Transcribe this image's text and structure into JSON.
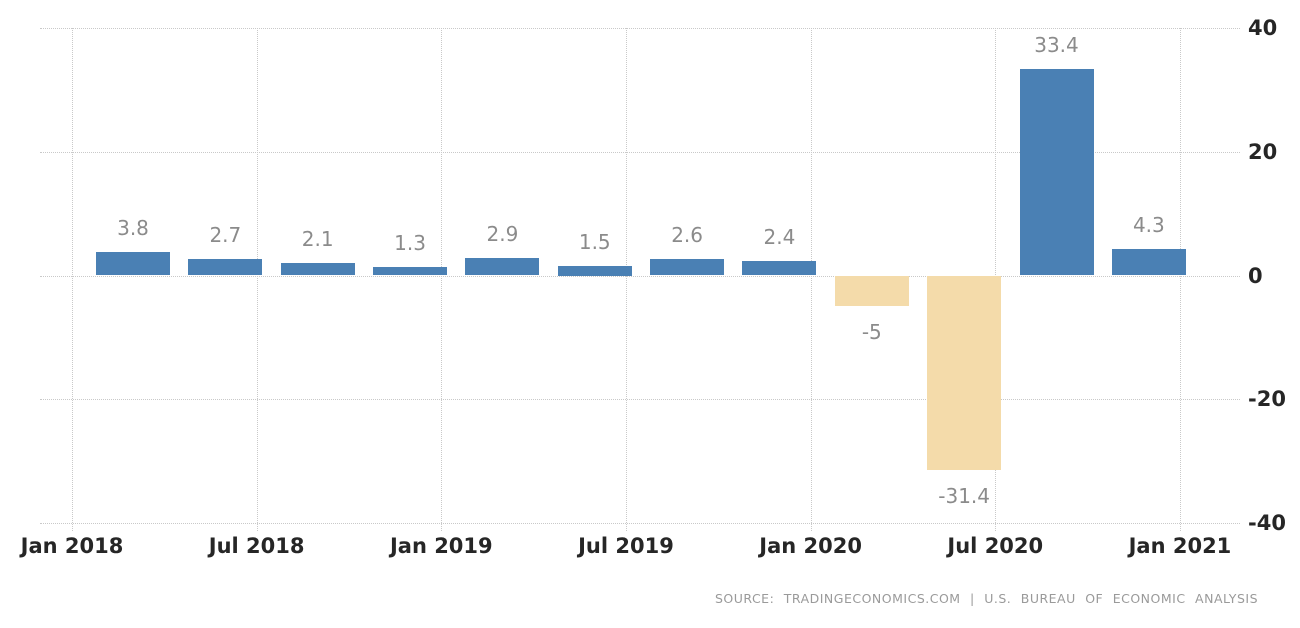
{
  "chart_data": {
    "type": "bar",
    "title": "",
    "xlabel": "",
    "ylabel": "",
    "x_tick_labels": [
      "Jan 2018",
      "Jul 2018",
      "Jan 2019",
      "Jul 2019",
      "Jan 2020",
      "Jul 2020",
      "Jan 2021"
    ],
    "y_tick_labels": [
      "40",
      "20",
      "0",
      "-20",
      "-40"
    ],
    "y_ticks": [
      40,
      20,
      0,
      -20,
      -40
    ],
    "ylim": [
      -40,
      40
    ],
    "values": [
      3.8,
      2.7,
      2.1,
      1.3,
      2.9,
      1.5,
      2.6,
      2.4,
      -5,
      -31.4,
      33.4,
      4.3
    ],
    "value_labels": [
      "3.8",
      "2.7",
      "2.1",
      "1.3",
      "2.9",
      "1.5",
      "2.6",
      "2.4",
      "-5",
      "-31.4",
      "33.4",
      "4.3"
    ],
    "positive_color": "#4a80b4",
    "negative_color": "#f4dbaa",
    "grid": "dotted",
    "gridline_color": "#c9c9c9",
    "legend": "none",
    "y_axis_position": "right"
  },
  "source_note": "SOURCE: TRADINGECONOMICS.COM | U.S. BUREAU OF ECONOMIC ANALYSIS"
}
